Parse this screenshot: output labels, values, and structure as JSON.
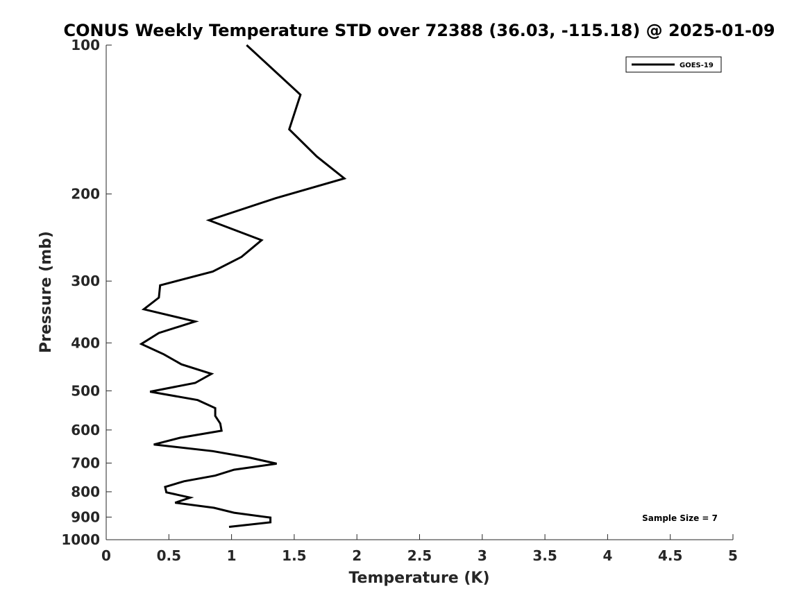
{
  "chart_data": {
    "type": "line",
    "title": "CONUS Weekly Temperature STD over 72388 (36.03, -115.18) @ 2025-01-09",
    "xlabel": "Temperature (K)",
    "ylabel": "Pressure (mb)",
    "xlim": [
      0,
      5
    ],
    "ylim": [
      100,
      1000
    ],
    "y_scale": "log",
    "y_reversed": true,
    "grid": false,
    "x_ticks": [
      "0",
      "0.5",
      "1",
      "1.5",
      "2",
      "2.5",
      "3",
      "3.5",
      "4",
      "4.5",
      "5"
    ],
    "y_ticks": [
      "100",
      "200",
      "300",
      "400",
      "500",
      "600",
      "700",
      "800",
      "900",
      "1000"
    ],
    "legend_position": "top-right",
    "annotation": "Sample Size = 7",
    "series": [
      {
        "name": "GOES-19",
        "color": "#000000",
        "points": [
          [
            1.12,
            100
          ],
          [
            1.55,
            126
          ],
          [
            1.46,
            148
          ],
          [
            1.68,
            168
          ],
          [
            1.9,
            186
          ],
          [
            1.35,
            204
          ],
          [
            0.82,
            226
          ],
          [
            1.24,
            248
          ],
          [
            1.08,
            268
          ],
          [
            0.85,
            287
          ],
          [
            0.43,
            306
          ],
          [
            0.42,
            324
          ],
          [
            0.3,
            342
          ],
          [
            0.71,
            362
          ],
          [
            0.42,
            382
          ],
          [
            0.28,
            402
          ],
          [
            0.46,
            422
          ],
          [
            0.6,
            442
          ],
          [
            0.84,
            462
          ],
          [
            0.71,
            482
          ],
          [
            0.35,
            502
          ],
          [
            0.73,
            522
          ],
          [
            0.87,
            542
          ],
          [
            0.87,
            562
          ],
          [
            0.91,
            582
          ],
          [
            0.92,
            602
          ],
          [
            0.59,
            622
          ],
          [
            0.38,
            642
          ],
          [
            0.85,
            662
          ],
          [
            1.14,
            682
          ],
          [
            1.36,
            702
          ],
          [
            1.02,
            722
          ],
          [
            0.87,
            742
          ],
          [
            0.62,
            762
          ],
          [
            0.47,
            782
          ],
          [
            0.48,
            802
          ],
          [
            0.67,
            822
          ],
          [
            0.55,
            842
          ],
          [
            0.86,
            862
          ],
          [
            1.02,
            882
          ],
          [
            1.31,
            902
          ],
          [
            1.31,
            922
          ],
          [
            0.98,
            942
          ]
        ]
      }
    ]
  }
}
